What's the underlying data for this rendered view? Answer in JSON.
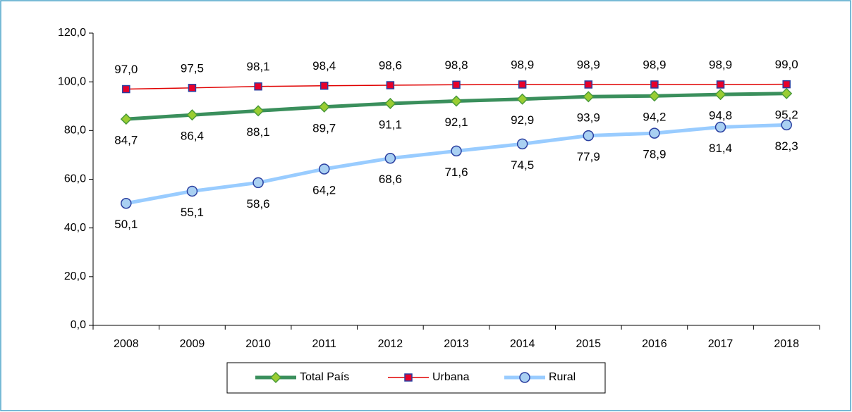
{
  "chart_data": {
    "type": "line",
    "categories": [
      "2008",
      "2009",
      "2010",
      "2011",
      "2012",
      "2013",
      "2014",
      "2015",
      "2016",
      "2017",
      "2018"
    ],
    "series": [
      {
        "name": "Total País",
        "color": "#3a8f5c",
        "marker": "diamond",
        "marker_color": "#9acd32",
        "label_position": "below",
        "values": [
          84.7,
          86.4,
          88.1,
          89.7,
          91.1,
          92.1,
          92.9,
          93.9,
          94.2,
          94.8,
          95.2
        ],
        "value_labels": [
          "84,7",
          "86,4",
          "88,1",
          "89,7",
          "91,1",
          "92,1",
          "92,9",
          "93,9",
          "94,2",
          "94,8",
          "95,2"
        ]
      },
      {
        "name": "Urbana",
        "color": "#e00000",
        "marker": "square",
        "marker_color": "#e8002a",
        "label_position": "above",
        "values": [
          97.0,
          97.5,
          98.1,
          98.4,
          98.6,
          98.8,
          98.9,
          98.9,
          98.9,
          98.9,
          99.0
        ],
        "value_labels": [
          "97,0",
          "97,5",
          "98,1",
          "98,4",
          "98,6",
          "98,8",
          "98,9",
          "98,9",
          "98,9",
          "98,9",
          "99,0"
        ]
      },
      {
        "name": "Rural",
        "color": "#99ccff",
        "marker": "circle",
        "marker_color": "#a9d0f2",
        "label_position": "below",
        "values": [
          50.1,
          55.1,
          58.6,
          64.2,
          68.6,
          71.6,
          74.5,
          77.9,
          78.9,
          81.4,
          82.3
        ],
        "value_labels": [
          "50,1",
          "55,1",
          "58,6",
          "64,2",
          "68,6",
          "71,6",
          "74,5",
          "77,9",
          "78,9",
          "81,4",
          "82,3"
        ]
      }
    ],
    "ylim": [
      0,
      120
    ],
    "yticks": [
      {
        "value": 0,
        "label": "0,0"
      },
      {
        "value": 20,
        "label": "20,0"
      },
      {
        "value": 40,
        "label": "40,0"
      },
      {
        "value": 60,
        "label": "60,0"
      },
      {
        "value": 80,
        "label": "80,0"
      },
      {
        "value": 100,
        "label": "100,0"
      },
      {
        "value": 120,
        "label": "120,0"
      }
    ],
    "legend": "bottom"
  }
}
